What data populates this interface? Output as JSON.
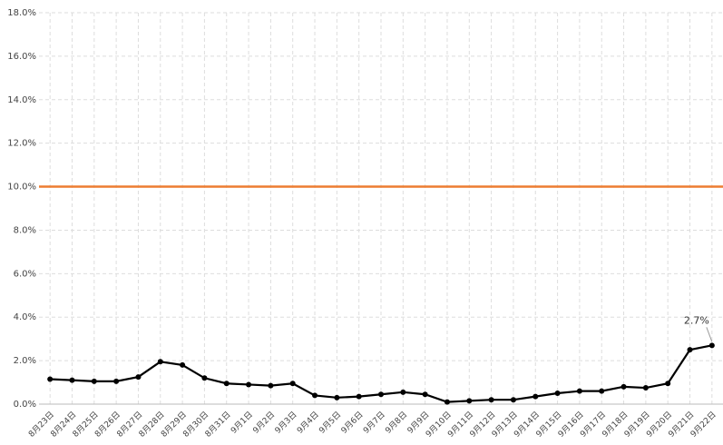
{
  "chart_data": {
    "type": "line",
    "categories": [
      "8月23日",
      "8月24日",
      "8月25日",
      "8月26日",
      "8月27日",
      "8月28日",
      "8月29日",
      "8月30日",
      "8月31日",
      "9月1日",
      "9月2日",
      "9月3日",
      "9月4日",
      "9月5日",
      "9月6日",
      "9月7日",
      "9月8日",
      "9月9日",
      "9月10日",
      "9月11日",
      "9月12日",
      "9月13日",
      "9月14日",
      "9月15日",
      "9月16日",
      "9月17日",
      "9月18日",
      "9月19日",
      "9月20日",
      "9月21日",
      "9月22日"
    ],
    "series": [
      {
        "color": "#000000",
        "values": [
          1.15,
          1.1,
          1.05,
          1.05,
          1.25,
          1.95,
          1.8,
          1.2,
          0.95,
          0.9,
          0.85,
          0.95,
          0.4,
          0.3,
          0.35,
          0.45,
          0.55,
          0.45,
          0.1,
          0.15,
          0.2,
          0.2,
          0.35,
          0.5,
          0.6,
          0.6,
          0.8,
          0.75,
          0.95,
          2.5,
          2.7
        ],
        "value_labels": [
          null,
          null,
          null,
          null,
          null,
          null,
          null,
          null,
          null,
          null,
          null,
          null,
          null,
          null,
          null,
          null,
          null,
          null,
          null,
          null,
          null,
          null,
          null,
          null,
          null,
          null,
          null,
          null,
          null,
          null,
          "2.7%"
        ]
      }
    ],
    "reference_line": {
      "value": 10,
      "color": "#ed7d31"
    },
    "ylim": [
      0,
      18
    ],
    "yticks": [
      {
        "value": 0,
        "label": "0.0%"
      },
      {
        "value": 2,
        "label": "2.0%"
      },
      {
        "value": 4,
        "label": "4.0%"
      },
      {
        "value": 6,
        "label": "6.0%"
      },
      {
        "value": 8,
        "label": "8.0%"
      },
      {
        "value": 10,
        "label": "10.0%"
      },
      {
        "value": 12,
        "label": "12.0%"
      },
      {
        "value": 14,
        "label": "14.0%"
      },
      {
        "value": 16,
        "label": "16.0%"
      },
      {
        "value": 18,
        "label": "18.0%"
      }
    ],
    "grid": true
  }
}
